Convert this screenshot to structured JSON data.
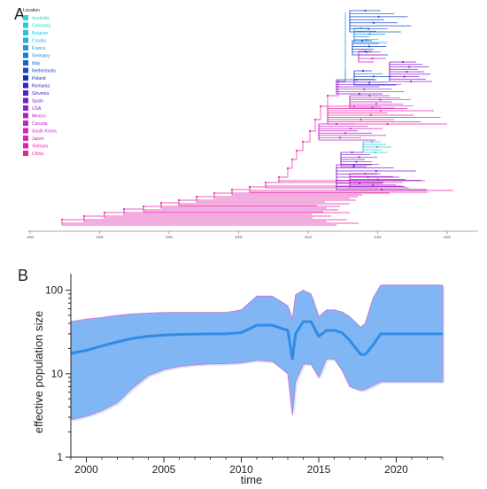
{
  "panel_a": {
    "letter": "A",
    "legend_title": "Location",
    "locations": [
      {
        "name": "Australia",
        "color": "#2ad8c8"
      },
      {
        "name": "Colombia",
        "color": "#22d1d6"
      },
      {
        "name": "Belgium",
        "color": "#20c4e2"
      },
      {
        "name": "Croatia",
        "color": "#1eb2e8"
      },
      {
        "name": "France",
        "color": "#1a98e0"
      },
      {
        "name": "Germany",
        "color": "#177cd6"
      },
      {
        "name": "Italy",
        "color": "#1660d0"
      },
      {
        "name": "Netherlands",
        "color": "#1848c8"
      },
      {
        "name": "Poland",
        "color": "#1a2cc0"
      },
      {
        "name": "Romania",
        "color": "#3a22c4"
      },
      {
        "name": "Slovenia",
        "color": "#5620c8"
      },
      {
        "name": "Spain",
        "color": "#7420cc"
      },
      {
        "name": "USA",
        "color": "#9020d0"
      },
      {
        "name": "Mexico",
        "color": "#b020cc"
      },
      {
        "name": "Canada",
        "color": "#c820c8"
      },
      {
        "name": "South Korea",
        "color": "#d820c0"
      },
      {
        "name": "Japan",
        "color": "#e020b4"
      },
      {
        "name": "Vietnam",
        "color": "#e622a8"
      },
      {
        "name": "China",
        "color": "#ec249c"
      }
    ],
    "axis_ticks": [
      "1990",
      "1995",
      "2000",
      "2005",
      "2010",
      "2015",
      "2020"
    ]
  },
  "chart_data": {
    "type": "area",
    "panel_letter": "B",
    "xlabel": "time",
    "ylabel": "effective population size",
    "y_scale": "log",
    "xlim": [
      1999,
      2023
    ],
    "ylim": [
      1,
      150
    ],
    "x_ticks": [
      2000,
      2005,
      2010,
      2015,
      2020
    ],
    "y_ticks": [
      1,
      10,
      100
    ],
    "series": [
      {
        "x": [
          1999,
          2000,
          2001,
          2002,
          2003,
          2004,
          2005,
          2006,
          2007,
          2008,
          2009,
          2010,
          2011,
          2012,
          2013,
          2013.3,
          2013.5,
          2014,
          2014.5,
          2015,
          2015.5,
          2016,
          2016.5,
          2017,
          2017.7,
          2018,
          2018.5,
          2019,
          2020,
          2021,
          2022,
          2023
        ],
        "median": [
          17.5,
          19,
          21.5,
          24,
          26.5,
          28,
          29,
          29.5,
          29.8,
          30,
          30,
          31,
          38,
          38,
          33,
          15,
          30,
          42,
          42,
          28,
          33,
          33,
          31,
          25,
          17,
          17,
          22,
          30,
          30,
          30,
          30,
          30
        ],
        "upper": [
          42,
          45,
          47,
          50,
          52,
          53,
          54,
          54,
          54,
          54,
          54,
          58,
          85,
          85,
          65,
          45,
          88,
          100,
          90,
          48,
          58,
          58,
          55,
          48,
          36,
          40,
          80,
          115,
          115,
          115,
          115,
          115
        ],
        "lower": [
          2.8,
          3.1,
          3.6,
          4.5,
          6.8,
          9.5,
          11.2,
          12.2,
          12.8,
          13.1,
          13.2,
          13.5,
          14.5,
          14,
          10,
          3.2,
          8,
          13,
          13,
          9,
          15,
          15,
          11,
          7,
          6.3,
          6.5,
          7.2,
          8,
          8,
          8,
          8,
          8
        ]
      }
    ]
  }
}
